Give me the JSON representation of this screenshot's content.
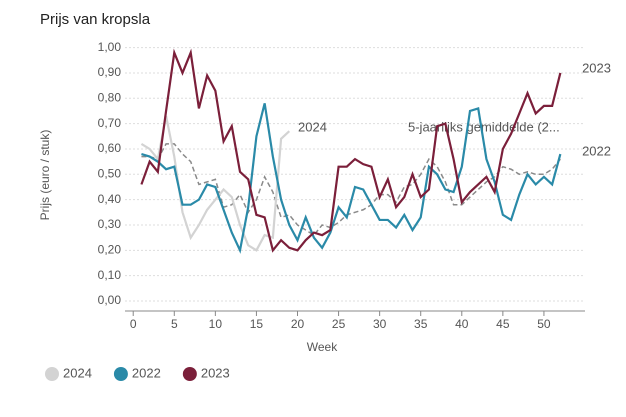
{
  "chart_data": {
    "type": "line",
    "title": "Prijs van kropsla",
    "x_label": "Week",
    "y_label": "Prijs (euro / stuk)",
    "x": [
      1,
      2,
      3,
      4,
      5,
      6,
      7,
      8,
      9,
      10,
      11,
      12,
      13,
      14,
      15,
      16,
      17,
      18,
      19,
      20,
      21,
      22,
      23,
      24,
      25,
      26,
      27,
      28,
      29,
      30,
      31,
      32,
      33,
      34,
      35,
      36,
      37,
      38,
      39,
      40,
      41,
      42,
      43,
      44,
      45,
      46,
      47,
      48,
      49,
      50,
      51,
      52
    ],
    "xlim": [
      -1,
      55
    ],
    "xticks": [
      0,
      5,
      10,
      15,
      20,
      25,
      30,
      35,
      40,
      45,
      50
    ],
    "ylim": [
      0,
      1.03
    ],
    "yticks": [
      {
        "value": 0,
        "label": "0,00"
      },
      {
        "value": 0.1,
        "label": "0,10"
      },
      {
        "value": 0.2,
        "label": "0,20"
      },
      {
        "value": 0.3,
        "label": "0,30"
      },
      {
        "value": 0.4,
        "label": "0,40"
      },
      {
        "value": 0.5,
        "label": "0,50"
      },
      {
        "value": 0.6,
        "label": "0,60"
      },
      {
        "value": 0.7,
        "label": "0,70"
      },
      {
        "value": 0.8,
        "label": "0,80"
      },
      {
        "value": 0.9,
        "label": "0,90"
      },
      {
        "value": 1,
        "label": "1,00"
      }
    ],
    "grid": true,
    "series": [
      {
        "name": "5-jaarlijks gemiddelde (2...",
        "color": "#8a8a8a",
        "dashed": true,
        "legend": false,
        "values": [
          0.57,
          0.57,
          0.56,
          0.62,
          0.62,
          0.58,
          0.55,
          0.46,
          0.47,
          0.48,
          0.37,
          0.38,
          0.42,
          0.35,
          0.4,
          0.49,
          0.43,
          0.33,
          0.34,
          0.3,
          0.28,
          0.26,
          0.3,
          0.29,
          0.31,
          0.34,
          0.35,
          0.36,
          0.38,
          0.42,
          0.42,
          0.39,
          0.45,
          0.46,
          0.5,
          0.56,
          0.53,
          0.47,
          0.38,
          0.38,
          0.41,
          0.44,
          0.47,
          0.49,
          0.53,
          0.52,
          0.5,
          0.51,
          0.5,
          0.5,
          0.52,
          0.56
        ]
      },
      {
        "name": "2024",
        "color": "#d3d3d3",
        "dashed": false,
        "legend": true,
        "values": [
          0.62,
          0.6,
          0.56,
          0.73,
          0.57,
          0.35,
          0.25,
          0.3,
          0.36,
          0.4,
          0.44,
          0.41,
          0.3,
          0.22,
          0.2,
          0.26,
          0.25,
          0.64,
          0.67,
          null,
          null,
          null,
          null,
          null,
          null,
          null,
          null,
          null,
          null,
          null,
          null,
          null,
          null,
          null,
          null,
          null,
          null,
          null,
          null,
          null,
          null,
          null,
          null,
          null,
          null,
          null,
          null,
          null,
          null,
          null,
          null,
          null
        ]
      },
      {
        "name": "2022",
        "color": "#2a8aa8",
        "dashed": false,
        "legend": true,
        "values": [
          0.58,
          0.57,
          0.55,
          0.52,
          0.53,
          0.38,
          0.38,
          0.4,
          0.46,
          0.45,
          0.36,
          0.27,
          0.2,
          0.37,
          0.65,
          0.78,
          0.57,
          0.4,
          0.3,
          0.24,
          0.33,
          0.25,
          0.21,
          0.27,
          0.37,
          0.33,
          0.45,
          0.44,
          0.38,
          0.32,
          0.32,
          0.29,
          0.34,
          0.28,
          0.33,
          0.53,
          0.5,
          0.44,
          0.43,
          0.53,
          0.75,
          0.76,
          0.56,
          0.47,
          0.34,
          0.32,
          0.42,
          0.5,
          0.46,
          0.49,
          0.46,
          0.58
        ]
      },
      {
        "name": "2023",
        "color": "#7b1f3a",
        "dashed": false,
        "legend": true,
        "values": [
          0.46,
          0.55,
          0.51,
          0.75,
          0.98,
          0.9,
          0.98,
          0.76,
          0.89,
          0.83,
          0.63,
          0.69,
          0.51,
          0.48,
          0.34,
          0.33,
          0.2,
          0.24,
          0.21,
          0.2,
          0.24,
          0.27,
          0.26,
          0.28,
          0.53,
          0.53,
          0.56,
          0.54,
          0.53,
          0.41,
          0.48,
          0.37,
          0.41,
          0.5,
          0.41,
          0.44,
          0.69,
          0.7,
          0.56,
          0.39,
          0.43,
          0.46,
          0.49,
          0.43,
          0.6,
          0.66,
          0.74,
          0.82,
          0.74,
          0.77,
          0.77,
          0.9
        ]
      }
    ]
  }
}
